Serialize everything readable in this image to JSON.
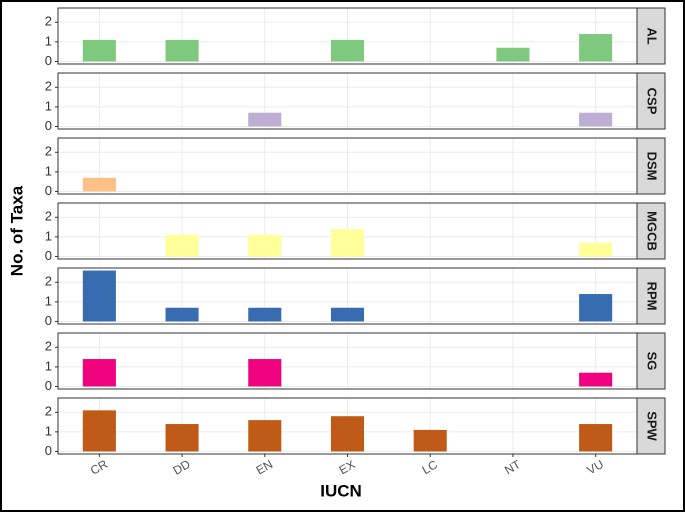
{
  "chart_data": {
    "type": "bar",
    "facet": true,
    "xlabel": "IUCN",
    "ylabel": "No. of Taxa",
    "categories": [
      "CR",
      "DD",
      "EN",
      "EX",
      "LC",
      "NT",
      "VU"
    ],
    "series": [
      {
        "name": "AL",
        "color": "#7fc97f",
        "values": [
          1.1,
          1.1,
          null,
          1.1,
          null,
          0.7,
          1.4
        ]
      },
      {
        "name": "CSP",
        "color": "#beaed4",
        "values": [
          null,
          null,
          0.7,
          null,
          null,
          null,
          0.7
        ]
      },
      {
        "name": "DSM",
        "color": "#fdc086",
        "values": [
          0.7,
          null,
          null,
          null,
          null,
          null,
          null
        ]
      },
      {
        "name": "MGCB",
        "color": "#ffff99",
        "values": [
          null,
          1.1,
          1.1,
          1.4,
          null,
          null,
          0.7
        ]
      },
      {
        "name": "RPM",
        "color": "#386cb0",
        "values": [
          2.6,
          0.7,
          0.7,
          0.7,
          null,
          null,
          1.4
        ]
      },
      {
        "name": "SG",
        "color": "#f0027f",
        "values": [
          1.4,
          null,
          1.4,
          null,
          null,
          null,
          0.7
        ]
      },
      {
        "name": "SPW",
        "color": "#bf5b17",
        "values": [
          2.1,
          1.4,
          1.6,
          1.8,
          1.1,
          null,
          1.4
        ]
      }
    ],
    "ylim": [
      -0.13,
      2.73
    ],
    "yticks": [
      0,
      1,
      2
    ],
    "grid": true
  }
}
